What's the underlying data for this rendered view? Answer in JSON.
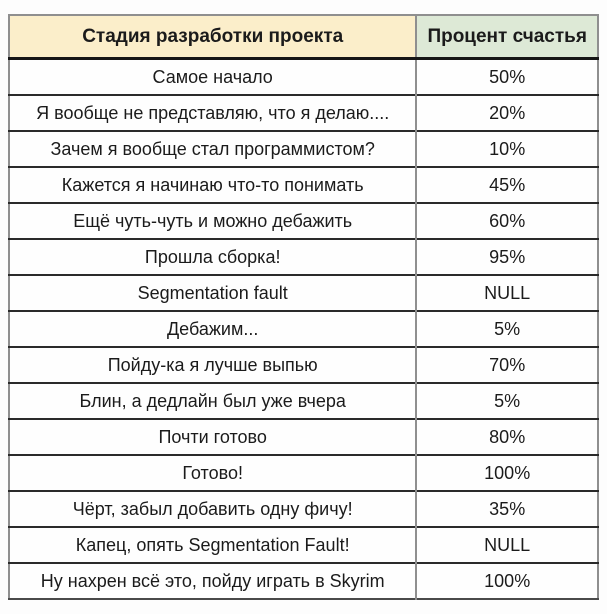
{
  "table": {
    "headers": {
      "stage": "Стадия разработки проекта",
      "percent": "Процент счастья"
    },
    "rows": [
      {
        "stage": "Самое начало",
        "percent": "50%"
      },
      {
        "stage": "Я вообще не представляю, что я делаю....",
        "percent": "20%"
      },
      {
        "stage": "Зачем я вообще стал программистом?",
        "percent": "10%"
      },
      {
        "stage": "Кажется я начинаю что-то понимать",
        "percent": "45%"
      },
      {
        "stage": "Ещё чуть-чуть и можно дебажить",
        "percent": "60%"
      },
      {
        "stage": "Прошла сборка!",
        "percent": "95%"
      },
      {
        "stage": "Segmentation fault",
        "percent": "NULL"
      },
      {
        "stage": "Дебажим...",
        "percent": "5%"
      },
      {
        "stage": "Пойду-ка я лучше выпью",
        "percent": "70%"
      },
      {
        "stage": "Блин, а дедлайн был уже вчера",
        "percent": "5%"
      },
      {
        "stage": "Почти готово",
        "percent": "80%"
      },
      {
        "stage": "Готово!",
        "percent": "100%"
      },
      {
        "stage": "Чёрт, забыл добавить одну фичу!",
        "percent": "35%"
      },
      {
        "stage": "Капец, опять Segmentation Fault!",
        "percent": "NULL"
      },
      {
        "stage": "Ну нахрен всё это, пойду играть в Skyrim",
        "percent": "100%"
      }
    ],
    "colors": {
      "header_stage_bg": "#fbeeca",
      "header_percent_bg": "#dde9d6",
      "text": "#1b1b1b",
      "row_border": "#2a2a2a",
      "column_divider": "#8f8f8f",
      "outer_border": "#8f8f8f"
    }
  }
}
